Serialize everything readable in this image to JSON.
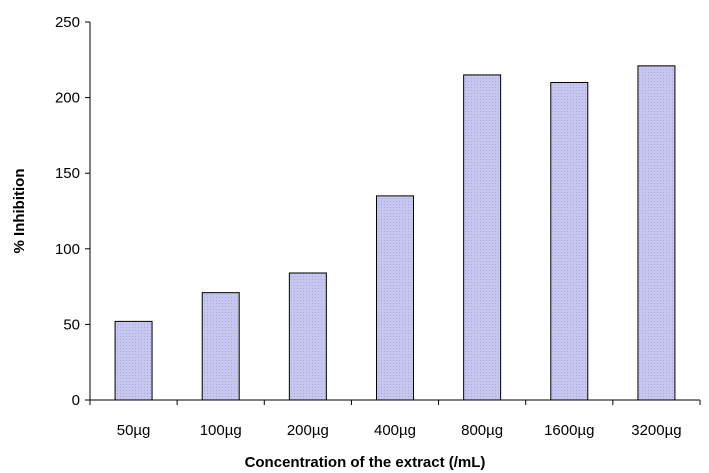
{
  "colors": {
    "bar_fill": "#c6c6ee",
    "bar_pattern": "#aaaadd",
    "bar_stroke": "#000000",
    "axis": "#000000"
  },
  "chart_data": {
    "type": "bar",
    "categories": [
      "50µg",
      "100µg",
      "200µg",
      "400µg",
      "800µg",
      "1600µg",
      "3200µg"
    ],
    "values": [
      52,
      71,
      84,
      135,
      215,
      210,
      221
    ],
    "title": "",
    "xlabel": "Concentration of the extract (/mL)",
    "ylabel": "% Inhibition",
    "ylim": [
      0,
      250
    ],
    "yticks": [
      0,
      50,
      100,
      150,
      200,
      250
    ],
    "grid": false,
    "legend": "none"
  }
}
